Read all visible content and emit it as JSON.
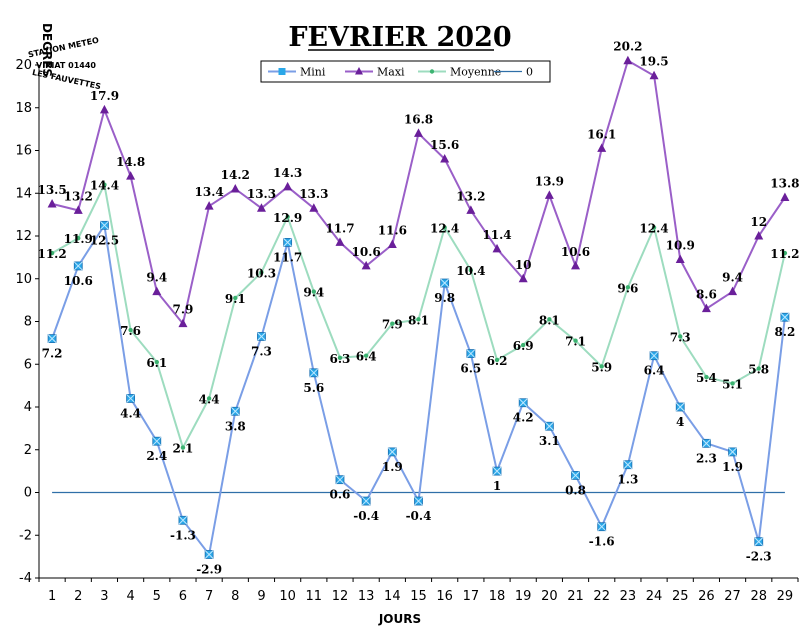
{
  "chart_data": {
    "type": "line",
    "title": "FEVRIER 2020",
    "ylabel": "DEGRES",
    "xlabel": "JOURS",
    "ylim": [
      -4,
      20
    ],
    "yticks": [
      -4,
      -2,
      0,
      2,
      4,
      6,
      8,
      10,
      12,
      14,
      16,
      18,
      20
    ],
    "x": [
      1,
      2,
      3,
      4,
      5,
      6,
      7,
      8,
      9,
      10,
      11,
      12,
      13,
      14,
      15,
      16,
      17,
      18,
      19,
      20,
      21,
      22,
      23,
      24,
      25,
      26,
      27,
      28,
      29
    ],
    "series": [
      {
        "name": "Mini",
        "color": "#7a9ee6",
        "marker": "#2aa7e8",
        "values": [
          7.2,
          10.6,
          12.5,
          4.4,
          2.4,
          -1.3,
          -2.9,
          3.8,
          7.3,
          11.7,
          5.6,
          0.6,
          -0.4,
          1.9,
          -0.4,
          9.8,
          6.5,
          1,
          4.2,
          3.1,
          0.8,
          -1.6,
          1.3,
          6.4,
          4,
          2.3,
          1.9,
          -2.3,
          8.2
        ]
      },
      {
        "name": "Maxi",
        "color": "#9a5fc8",
        "marker": "#6a1f9a",
        "values": [
          13.5,
          13.2,
          17.9,
          14.8,
          9.4,
          7.9,
          13.4,
          14.2,
          13.3,
          14.3,
          13.3,
          11.7,
          10.6,
          11.6,
          16.8,
          15.6,
          13.2,
          11.4,
          10,
          13.9,
          10.6,
          16.1,
          20.2,
          19.5,
          10.9,
          8.6,
          9.4,
          12,
          13.8
        ]
      },
      {
        "name": "Moyenne",
        "color": "#9ddcbf",
        "marker": "#3cb371",
        "values": [
          11.2,
          11.9,
          14.4,
          7.6,
          6.1,
          2.1,
          4.4,
          9.1,
          10.3,
          12.9,
          9.4,
          6.3,
          6.4,
          7.9,
          8.1,
          12.4,
          10.4,
          6.2,
          6.9,
          8.1,
          7.1,
          5.9,
          9.6,
          12.4,
          7.3,
          5.4,
          5.1,
          5.8,
          11.2
        ]
      },
      {
        "name": "0",
        "color": "#2f6fa8",
        "values": [
          0,
          0,
          0,
          0,
          0,
          0,
          0,
          0,
          0,
          0,
          0,
          0,
          0,
          0,
          0,
          0,
          0,
          0,
          0,
          0,
          0,
          0,
          0,
          0,
          0,
          0,
          0,
          0,
          0
        ]
      }
    ],
    "legend": "top-center",
    "grid": false
  },
  "stamp": {
    "line1": "STATION METEO",
    "line2": "VIRIAT 01440",
    "line3": "LES FAUVETTES"
  }
}
